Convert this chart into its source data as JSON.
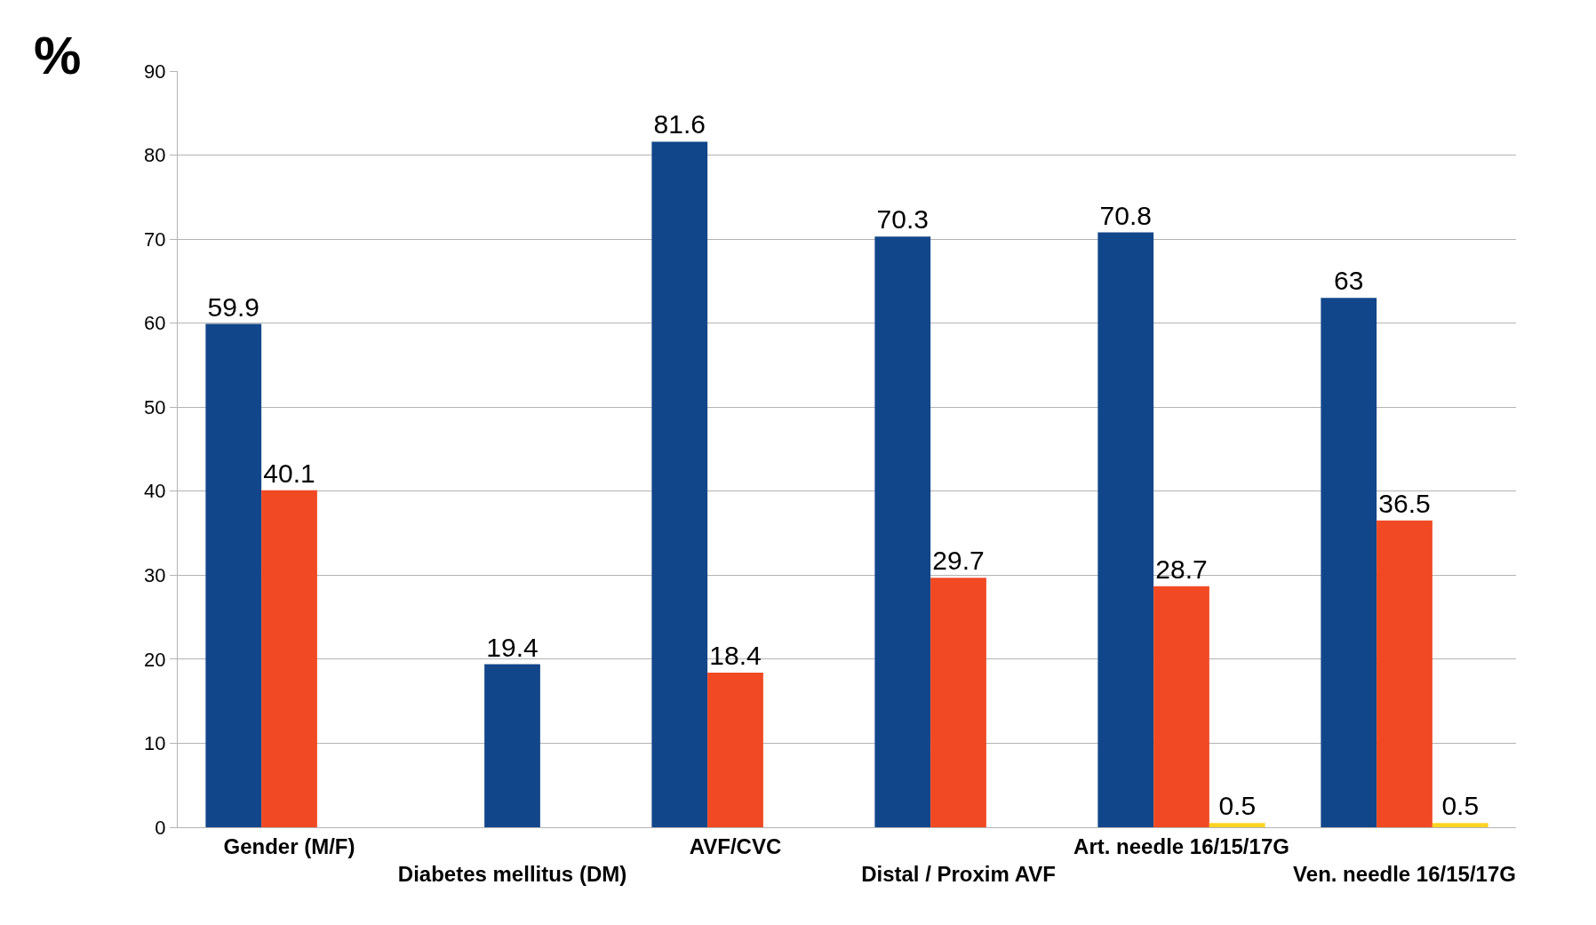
{
  "chart_data": {
    "type": "bar",
    "ylabel": "%",
    "categories": [
      "Gender (M/F)",
      "Diabetes mellitus (DM)",
      "AVF/CVC",
      "Distal / Proxim AVF",
      "Art. needle 16/15/17G",
      "Ven. needle 16/15/17G"
    ],
    "series": [
      {
        "color": "#12468a",
        "values": [
          59.9,
          null,
          81.6,
          70.3,
          70.8,
          63
        ]
      },
      {
        "color": "#f04923",
        "colors": [
          "#f04923",
          "#12468a",
          "#f04923",
          "#f04923",
          "#f04923",
          "#f04923"
        ],
        "values": [
          40.1,
          19.4,
          18.4,
          29.7,
          28.7,
          36.5
        ]
      },
      {
        "color": "#ffd320",
        "values": [
          null,
          null,
          null,
          null,
          0.5,
          0.5
        ]
      }
    ],
    "ylim": [
      0,
      90
    ],
    "yticks": [
      0,
      10,
      20,
      30,
      40,
      50,
      60,
      70,
      80,
      90
    ],
    "grid": "y",
    "data_labels": true
  }
}
